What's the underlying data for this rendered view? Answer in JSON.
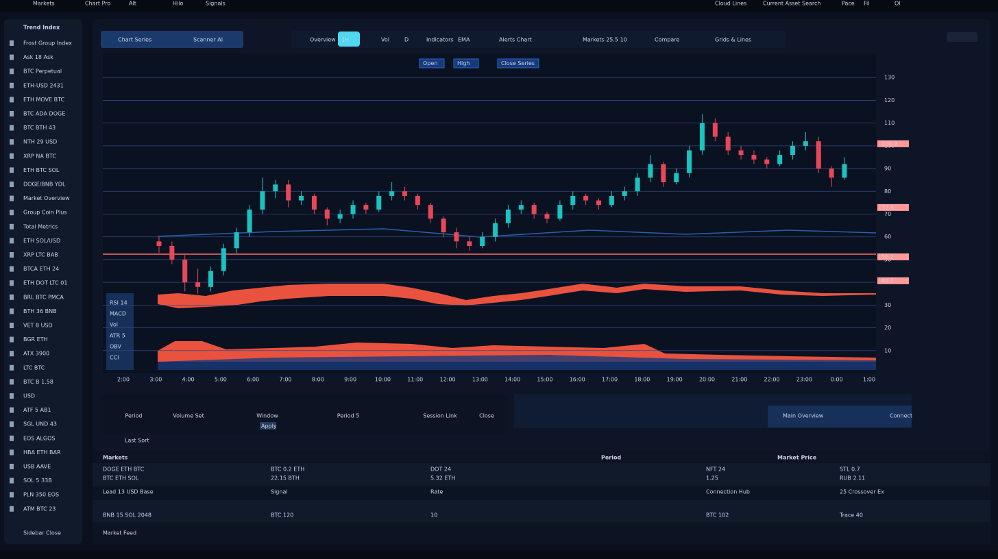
{
  "top_bar": {
    "left": [
      "Markets",
      "Chart Pro",
      "Alt",
      "Hilo",
      "Signals"
    ],
    "right": [
      "Cloud Lines",
      "Current Asset Search",
      "Pace",
      "Fil",
      "Ol"
    ]
  },
  "sidebar": {
    "title": "Trend Index",
    "items": [
      {
        "label": "Frost Group Index",
        "color": "#c8d3e6"
      },
      {
        "label": "Ask 18 Ask",
        "color": "#c8d3e6"
      },
      {
        "label": "BTC Perpetual",
        "color": "#c8d3e6"
      },
      {
        "label": "ETH-USD 2431",
        "color": "#ff5a5a"
      },
      {
        "label": "ETH MOVE BTC",
        "color": "#ff5a5a"
      },
      {
        "label": "BTC ADA DOGE",
        "color": "#c8d3e6"
      },
      {
        "label": "BTC BTH 43",
        "color": "#c8d3e6"
      },
      {
        "label": "NTH 29 USD",
        "color": "#c8d3e6"
      },
      {
        "label": "XRP NA BTC",
        "color": "#c8d3e6"
      },
      {
        "label": "ETH BTC SOL",
        "color": "#ff5a5a"
      },
      {
        "label": "DOGE/BNB YDL",
        "color": "#c8d3e6"
      },
      {
        "label": "Market Overview",
        "color": "#c8d3e6"
      },
      {
        "label": "Group Coin Plus",
        "color": "#ff5a5a"
      },
      {
        "label": "Total Metrics",
        "color": "#c8d3e6"
      },
      {
        "label": "ETH SOL/USD",
        "color": "#c8d3e6"
      },
      {
        "label": "XRP LTC BAB",
        "color": "#c8d3e6"
      },
      {
        "label": "BTCA ETH 24",
        "color": "#c8d3e6"
      },
      {
        "label": "ETH DOT LTC 01",
        "color": "#ff5a5a"
      },
      {
        "label": "BRL BTC PMCA",
        "color": "#c8d3e6"
      },
      {
        "label": "BTH 36 BNB",
        "color": "#ff5a5a"
      },
      {
        "label": "VET 8 USD",
        "color": "#c8d3e6"
      },
      {
        "label": "BGR ETH",
        "color": "#c8d3e6"
      },
      {
        "label": "ATX 3900",
        "color": "#c8d3e6"
      },
      {
        "label": "LTC BTC",
        "color": "#c8d3e6"
      },
      {
        "label": "BTC B 1.58",
        "color": "#ff5a5a"
      },
      {
        "label": "USD",
        "color": "#c8d3e6"
      },
      {
        "label": "ATF 5 AB1",
        "color": "#c8d3e6"
      },
      {
        "label": "SGL UND 43",
        "color": "#c8d3e6"
      },
      {
        "label": "EOS ALGOS",
        "color": "#c8d3e6"
      },
      {
        "label": "HBA ETH BAR",
        "color": "#c8d3e6"
      },
      {
        "label": "USB AAVE",
        "color": "#c8d3e6"
      },
      {
        "label": "SOL 5 33B",
        "color": "#c8d3e6"
      },
      {
        "label": "PLN 350 EOS",
        "color": "#c8d3e6"
      },
      {
        "label": "ATM BTC 23",
        "color": "#ff5a5a"
      }
    ],
    "footer": "Sidebar Close"
  },
  "toolbar": {
    "left_tabs": [
      "Chart Series",
      "Scanner AI"
    ],
    "tabs": [
      "Overview",
      "1H",
      "Vol",
      "D",
      "Indicators",
      "EMA",
      "Alerts Chart",
      "Markets 25.5 10",
      "Compare",
      "Grids & Lines"
    ],
    "active": 1
  },
  "chart_data": {
    "type": "candlestick",
    "legend": [
      "Open",
      "High",
      "Close Series"
    ],
    "up_color": "#19c3c0",
    "down_color": "#e8475a",
    "open": [
      58,
      56,
      50,
      40,
      38,
      45,
      55,
      62,
      72,
      80,
      83,
      76,
      78,
      72,
      68,
      70,
      74,
      72,
      78,
      80,
      78,
      74,
      68,
      62,
      58,
      56,
      60,
      66,
      72,
      74,
      70,
      68,
      74,
      78,
      76,
      74,
      78,
      80,
      86,
      92,
      84,
      88,
      98,
      110,
      104,
      98,
      96,
      94,
      92,
      96,
      100,
      102,
      90,
      86
    ],
    "high": [
      60,
      58,
      52,
      46,
      47,
      57,
      64,
      74,
      86,
      85,
      85,
      80,
      79,
      73,
      72,
      76,
      75,
      80,
      84,
      82,
      79,
      75,
      69,
      64,
      60,
      62,
      68,
      74,
      76,
      75,
      71,
      76,
      80,
      79,
      77,
      80,
      82,
      88,
      96,
      93,
      90,
      100,
      114,
      112,
      106,
      100,
      98,
      95,
      98,
      102,
      106,
      104,
      91,
      95
    ],
    "low": [
      53,
      48,
      36,
      35,
      36,
      43,
      53,
      60,
      70,
      77,
      73,
      74,
      70,
      65,
      66,
      68,
      70,
      71,
      76,
      76,
      72,
      66,
      60,
      55,
      54,
      55,
      58,
      64,
      70,
      68,
      66,
      67,
      72,
      74,
      72,
      73,
      76,
      78,
      84,
      82,
      83,
      86,
      96,
      102,
      96,
      94,
      92,
      90,
      91,
      94,
      98,
      88,
      82,
      85
    ],
    "close": [
      56,
      50,
      40,
      38,
      45,
      55,
      62,
      72,
      80,
      83,
      76,
      78,
      72,
      68,
      70,
      74,
      72,
      78,
      80,
      78,
      74,
      68,
      62,
      58,
      56,
      60,
      66,
      72,
      74,
      70,
      68,
      74,
      78,
      76,
      74,
      78,
      80,
      86,
      92,
      84,
      88,
      98,
      110,
      104,
      98,
      96,
      94,
      92,
      96,
      100,
      102,
      90,
      86,
      92
    ],
    "ylim": [
      0,
      140
    ],
    "yticks": [
      10,
      20,
      30,
      40,
      50,
      60,
      70,
      80,
      90,
      100,
      110,
      120,
      130
    ],
    "grid": true,
    "price_tags": [
      {
        "value": 100.9,
        "label": "100.9"
      },
      {
        "value": 72.9,
        "label": "72.9"
      },
      {
        "value": 51.2,
        "label": "51.2"
      },
      {
        "value": 40.7,
        "label": "40.7"
      }
    ],
    "overlay_labels": [
      "RSI 14",
      "MACD",
      "Vol",
      "ATR 5",
      "OBV",
      "CCI"
    ],
    "xlabels": [
      "2:00",
      "3:00",
      "4:00",
      "5:00",
      "6:00",
      "7:00",
      "8:00",
      "9:00",
      "10:00",
      "11:00",
      "12:00",
      "13:00",
      "14:00",
      "15:00",
      "16:00",
      "17:00",
      "18:00",
      "19:00",
      "20:00",
      "21:00",
      "22:00",
      "23:00",
      "0:00",
      "1:00"
    ]
  },
  "controls": {
    "items": [
      "Period",
      "Volume Set",
      "Window",
      "Period 5",
      "Session Link",
      "Close"
    ],
    "button": "Apply",
    "sub": "Last Sort",
    "right": [
      "Main Overview",
      "Connect"
    ]
  },
  "table": {
    "headers": [
      "Markets",
      "Period",
      "Market Price"
    ],
    "rows": [
      [
        {
          "text": "DOGE ETH BTC",
          "color": "#c8d3e6"
        },
        {
          "text": "BTC 0.2 ETH",
          "color": "#c8d3e6"
        },
        {
          "text": "DOT 24",
          "color": "#c8d3e6"
        },
        {
          "text": "NFT 24",
          "color": "#ff5a5a"
        },
        {
          "text": "STL 0.7",
          "color": "#ff5a5a"
        }
      ],
      [
        {
          "text": "BTC ETH SOL",
          "color": "#c8d3e6"
        },
        {
          "text": "22.15 BTH",
          "color": "#ff5a5a"
        },
        {
          "text": "5.32 ETH",
          "color": "#ff5a5a"
        },
        {
          "text": "1.25",
          "color": "#ff5a5a"
        },
        {
          "text": "RUB 2.11",
          "color": "#ff5a5a"
        }
      ],
      [
        {
          "text": "Lead 13 USD Base",
          "color": "#c8d3e6"
        },
        {
          "text": "Signal",
          "color": "#c8d3e6"
        },
        {
          "text": "Rate",
          "color": "#c8d3e6"
        },
        {
          "text": "Connection Hub",
          "color": "#c8d3e6"
        },
        {
          "text": "25 Crossover Ex",
          "color": "#c8d3e6"
        }
      ],
      [
        {
          "text": "BNB 15 SOL 2048",
          "color": "#c8d3e6"
        },
        {
          "text": "BTC 120",
          "color": "#ff5a5a"
        },
        {
          "text": "10",
          "color": "#ff5a5a"
        },
        {
          "text": "BTC 102",
          "color": "#ff5a5a"
        },
        {
          "text": "Trace 40",
          "color": "#c8d3e6"
        }
      ]
    ],
    "footer": "Market Feed"
  }
}
